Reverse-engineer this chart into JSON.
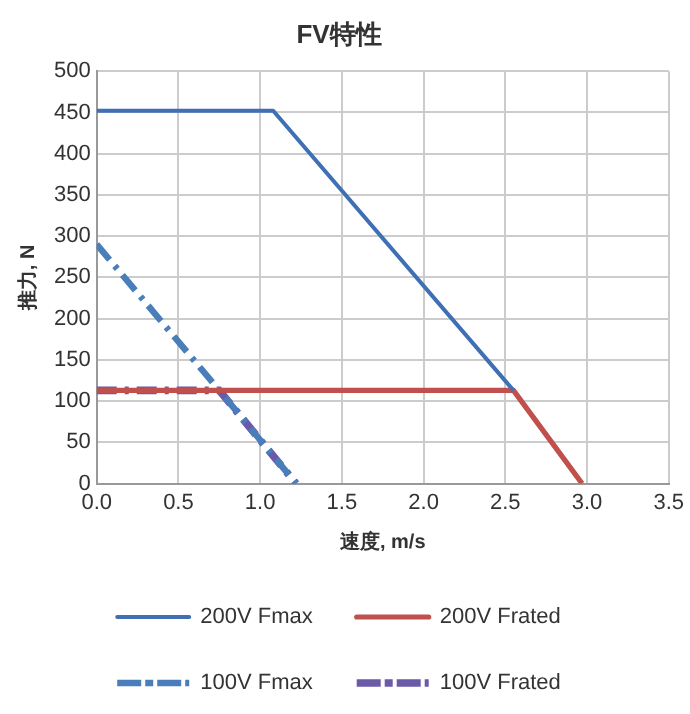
{
  "chart_data": {
    "type": "line",
    "title": "FV特性",
    "xlabel": "速度, m/s",
    "ylabel": "推力, N",
    "xlim": [
      0,
      3.5
    ],
    "xticks": [
      {
        "value": 0,
        "label": "0.0"
      },
      {
        "value": 0.5,
        "label": "0.5"
      },
      {
        "value": 1,
        "label": "1.0"
      },
      {
        "value": 1.5,
        "label": "1.5"
      },
      {
        "value": 2,
        "label": "2.0"
      },
      {
        "value": 2.5,
        "label": "2.5"
      },
      {
        "value": 3,
        "label": "3.0"
      },
      {
        "value": 3.5,
        "label": "3.5"
      }
    ],
    "ylim": [
      0,
      500
    ],
    "yticks": [
      0,
      50,
      100,
      150,
      200,
      250,
      300,
      350,
      400,
      450,
      500
    ],
    "grid": true,
    "legend": "bottom",
    "series": [
      {
        "name": "200V Fmax",
        "color": "#3f6fb5",
        "line_style": "solid",
        "x": [
          0,
          1.08,
          2.55
        ],
        "values": [
          452,
          452,
          113
        ]
      },
      {
        "name": "200V Frated",
        "color": "#c0504d",
        "line_style": "solid",
        "x": [
          0,
          2.55,
          2.97
        ],
        "values": [
          113,
          113,
          0
        ]
      },
      {
        "name": "100V Fmax",
        "color": "#4a7ebb",
        "line_style": "dashed",
        "x": [
          0,
          0.75,
          1.22
        ],
        "values": [
          290,
          113,
          0
        ]
      },
      {
        "name": "100V Frated",
        "color": "#6a5aa8",
        "line_style": "dashed",
        "x": [
          0,
          0.75,
          1.22
        ],
        "values": [
          113,
          113,
          0
        ]
      }
    ]
  }
}
